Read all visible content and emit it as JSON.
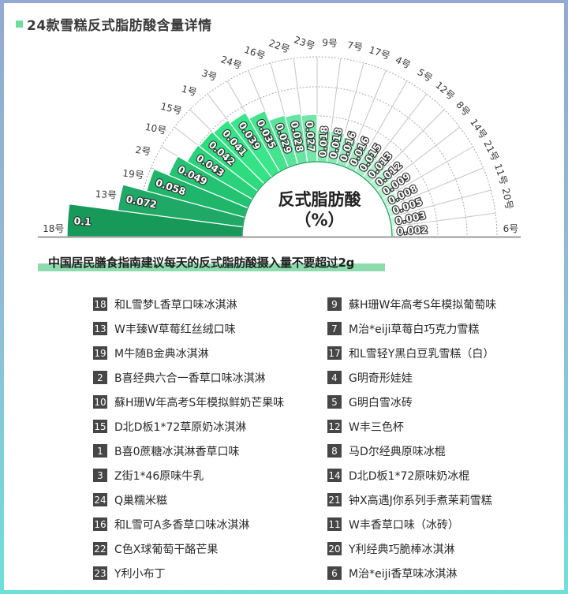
{
  "header": {
    "title": "24款雪糕反式脂肪酸含量详情"
  },
  "chart_center": {
    "line1": "反式脂肪酸",
    "line2": "（%）"
  },
  "note": {
    "text": "中国居民膳食指南建议每天的反式脂肪酸摄入量不要超过2g",
    "highlight_color": "#8edcae"
  },
  "chart_data": {
    "type": "bar",
    "subtype": "polar-half-rose",
    "title": "24款雪糕反式脂肪酸含量详情",
    "value_label": "反式脂肪酸（%）",
    "categories": [
      "18号",
      "13号",
      "19号",
      "2号",
      "10号",
      "15号",
      "1号",
      "3号",
      "24号",
      "16号",
      "22号",
      "23号",
      "9号",
      "7号",
      "17号",
      "4号",
      "5号",
      "12号",
      "8号",
      "14号",
      "21号",
      "11号",
      "20号",
      "6号"
    ],
    "values": [
      0.1,
      0.072,
      0.058,
      0.049,
      0.043,
      0.042,
      0.041,
      0.039,
      0.035,
      0.029,
      0.028,
      0.027,
      0.018,
      0.018,
      0.016,
      0.016,
      0.015,
      0.013,
      0.012,
      0.009,
      0.008,
      0.005,
      0.003,
      0.002
    ],
    "value_labels": [
      "0.1",
      "0.072",
      "0.058",
      "0.049",
      "0.043",
      "0.042",
      "0.041",
      "0.039",
      "0.035",
      "0.029",
      "0.028",
      "0.027",
      "0.018",
      "0.018",
      "0.016",
      "0.016",
      "0.015",
      "0.013",
      "0.012",
      "0.009",
      "0.008",
      "0.005",
      "0.003",
      "0.002"
    ],
    "colors": [
      "#17995a",
      "#1fa866",
      "#1fb56b",
      "#23c373",
      "#29d27b",
      "#2edc80",
      "#33e385",
      "#3be58b",
      "#46e38f",
      "#5ae49b",
      "#68e5a3",
      "#75e6aa",
      "#83e8b2",
      "#8ee9b8",
      "#98ebbe",
      "#a1ecc3",
      "#a9eec8",
      "#b1efcc",
      "#b7f0d0",
      "#bef2d4",
      "#c3f3d7",
      "#c8f4da",
      "#ccf5dd",
      "#d0f6e0"
    ],
    "sorted": "descending",
    "angle_range": [
      180,
      0
    ],
    "grid": true
  },
  "legend": {
    "left": [
      {
        "num": "18",
        "name": "和L雪梦L香草口味冰淇淋"
      },
      {
        "num": "13",
        "name": "W丰臻W草莓红丝绒口味"
      },
      {
        "num": "19",
        "name": "M牛随B金典冰淇淋"
      },
      {
        "num": "2",
        "name": "B喜经典六合一香草口味冰淇淋"
      },
      {
        "num": "10",
        "name": "蘇H珊W年高考S年模拟鲜奶芒果味"
      },
      {
        "num": "15",
        "name": "D北D板1*72草原奶冰淇淋"
      },
      {
        "num": "1",
        "name": "B喜0蔗糖冰淇淋香草口味"
      },
      {
        "num": "3",
        "name": "Z街1*46原味牛乳"
      },
      {
        "num": "24",
        "name": "Q巢糯米糍"
      },
      {
        "num": "16",
        "name": "和L雪可A多香草口味冰淇淋"
      },
      {
        "num": "22",
        "name": "C色X球葡萄干酪芒果"
      },
      {
        "num": "23",
        "name": "Y利小布丁"
      }
    ],
    "right": [
      {
        "num": "9",
        "name": "蘇H珊W年高考S年模拟葡萄味"
      },
      {
        "num": "7",
        "name": "M治*eiji草莓白巧克力雪糕"
      },
      {
        "num": "17",
        "name": "和L雪轻Y黑白豆乳雪糕（白）"
      },
      {
        "num": "4",
        "name": "G明奇形娃娃"
      },
      {
        "num": "5",
        "name": "G明白雪冰砖"
      },
      {
        "num": "12",
        "name": "W丰三色杯"
      },
      {
        "num": "8",
        "name": "马D尔经典原味冰棍"
      },
      {
        "num": "14",
        "name": "D北D板1*72原味奶冰棍"
      },
      {
        "num": "21",
        "name": "钟X高遇J你系列手煮茉莉雪糕"
      },
      {
        "num": "11",
        "name": "W丰香草口味（冰砖）"
      },
      {
        "num": "20",
        "name": "Y利经典巧脆棒冰淇淋"
      },
      {
        "num": "6",
        "name": "M治*eiji香草味冰淇淋"
      }
    ]
  }
}
